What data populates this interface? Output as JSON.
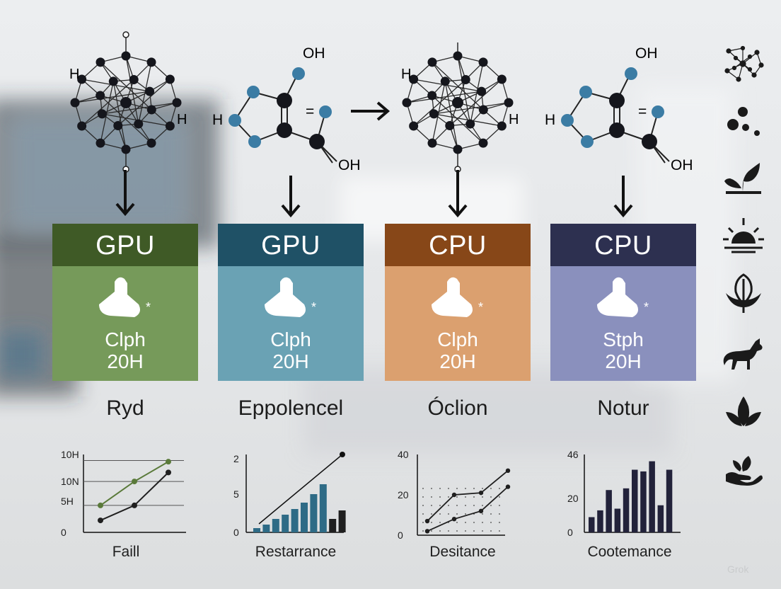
{
  "molecules": [
    {
      "labels": [
        "H",
        "H"
      ]
    },
    {
      "labels": [
        "OH",
        "=",
        "H",
        "OH"
      ]
    },
    {
      "labels": [
        "H",
        "H"
      ]
    },
    {
      "labels": [
        "OH",
        "=",
        "H",
        "OH"
      ]
    }
  ],
  "cards": [
    {
      "header": "GPU",
      "line1": "Clph",
      "line2": "20H",
      "header_color": "#3f5a26",
      "body_color": "#769a5a"
    },
    {
      "header": "GPU",
      "line1": "Clph",
      "line2": "20H",
      "header_color": "#1f5166",
      "body_color": "#6aa2b4"
    },
    {
      "header": "CPU",
      "line1": "Clph",
      "line2": "20H",
      "header_color": "#874718",
      "body_color": "#dba06f"
    },
    {
      "header": "CPU",
      "line1": "Stph",
      "line2": "20H",
      "header_color": "#2d3050",
      "body_color": "#8a90bd"
    }
  ],
  "captions": [
    "Ryd",
    "Eppolencel",
    "Óclion",
    "Notur"
  ],
  "chart_data": [
    {
      "type": "line",
      "xlabel": "Faill",
      "y_ticks": [
        "10H",
        "10N",
        "5H",
        "0"
      ],
      "series": [
        {
          "color": "#5a7a3a",
          "points": [
            [
              0,
              4.5
            ],
            [
              1,
              8.5
            ],
            [
              2,
              11.8
            ]
          ]
        },
        {
          "color": "#1f1f1f",
          "points": [
            [
              0,
              2
            ],
            [
              1,
              4.5
            ],
            [
              2,
              10
            ]
          ]
        }
      ]
    },
    {
      "type": "bar",
      "xlabel": "Restarrance",
      "y_ticks": [
        "2",
        "5",
        "0"
      ],
      "values": [
        0.6,
        1.1,
        1.9,
        2.5,
        3.3,
        4.2,
        5.4,
        6.8,
        1.9,
        3.1
      ],
      "colors": [
        "#2e6b86",
        "#2e6b86",
        "#2e6b86",
        "#2e6b86",
        "#2e6b86",
        "#2e6b86",
        "#2e6b86",
        "#2e6b86",
        "#1f1f1f",
        "#1f1f1f"
      ],
      "trend": [
        [
          0.6,
          1.2
        ],
        [
          9.4,
          11
        ]
      ]
    },
    {
      "type": "line",
      "xlabel": "Desitance",
      "y_ticks": [
        "40",
        "20",
        "0"
      ],
      "series": [
        {
          "color": "#1f1f1f",
          "points": [
            [
              0,
              7
            ],
            [
              1,
              20
            ],
            [
              2,
              21
            ],
            [
              3,
              32
            ]
          ]
        },
        {
          "color": "#1f1f1f",
          "points": [
            [
              0,
              2
            ],
            [
              1,
              8
            ],
            [
              2,
              12
            ],
            [
              3,
              24
            ]
          ]
        }
      ]
    },
    {
      "type": "bar",
      "xlabel": "Cootemance",
      "y_ticks": [
        "46",
        "20",
        "0"
      ],
      "values": [
        9,
        13,
        25,
        14,
        26,
        37,
        36,
        42,
        16,
        37
      ],
      "colors": [
        "#22223a",
        "#22223a",
        "#22223a",
        "#22223a",
        "#22223a",
        "#22223a",
        "#22223a",
        "#22223a",
        "#22223a",
        "#22223a"
      ]
    }
  ],
  "side_icons": [
    "molecule-network-icon",
    "dots-icon",
    "sprout-icon",
    "sunrise-icon",
    "leaf-branch-icon",
    "fox-icon",
    "lotus-leaf-icon",
    "hand-leaf-icon"
  ],
  "watermark": "Grok"
}
